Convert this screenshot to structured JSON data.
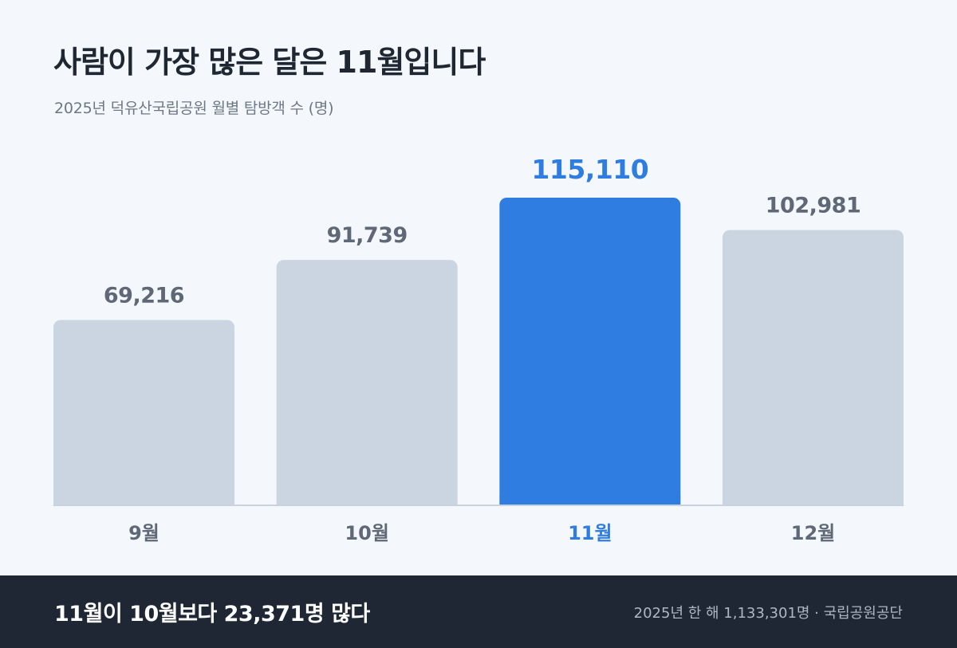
{
  "title": "사람이 가장 많은 달은 11월입니다",
  "subtitle": "2025년 덕유산국립공원 월별 탐방객 수 (명)",
  "chart_data": {
    "type": "bar",
    "categories": [
      "9월",
      "10월",
      "11월",
      "12월"
    ],
    "values": [
      69216,
      91739,
      115110,
      102981
    ],
    "value_labels": [
      "69,216",
      "91,739",
      "115,110",
      "102,981"
    ],
    "highlight_index": 2,
    "ylim": [
      0,
      115110
    ],
    "grid": false,
    "legend": "none",
    "colors": {
      "bar": "#cbd5e1",
      "highlight_bar": "#2f7de1",
      "value_text": "#5f6877",
      "highlight_text": "#2f7de1",
      "category_text": "#5f6877",
      "baseline": "#c9d3e0"
    }
  },
  "footer": {
    "headline": "11월이 10월보다 23,371명 많다",
    "note": "2025년 한 해 1,133,301명 · 국립공원공단"
  }
}
